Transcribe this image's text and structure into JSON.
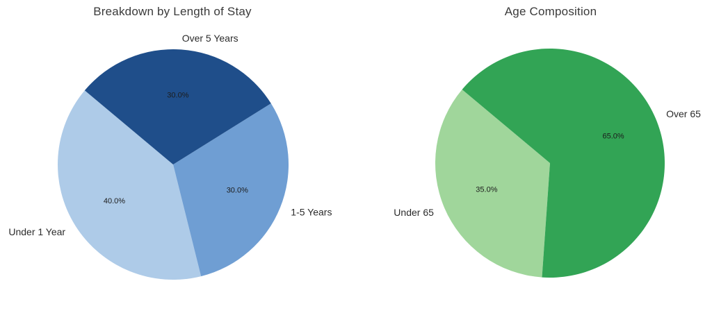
{
  "page": {
    "background": "#ffffff"
  },
  "chart_data": [
    {
      "type": "pie",
      "title": "Breakdown by Length of Stay",
      "categories": [
        "Under 1 Year",
        "1-5 Years",
        "Over 5 Years"
      ],
      "values": [
        40.0,
        30.0,
        30.0
      ],
      "percent_labels": [
        "40.0%",
        "30.0%",
        "30.0%"
      ],
      "colors": [
        "#aecbe8",
        "#6f9ed3",
        "#1f4e8a"
      ],
      "start_angle_deg": 140,
      "direction": "counterclockwise",
      "label_distance": 1.1,
      "percent_distance": 0.6,
      "legend_position": "none",
      "grid": false
    },
    {
      "type": "pie",
      "title": "Age Composition",
      "categories": [
        "Under 65",
        "Over 65"
      ],
      "values": [
        35.0,
        65.0
      ],
      "percent_labels": [
        "35.0%",
        "65.0%"
      ],
      "colors": [
        "#a0d69b",
        "#32a455"
      ],
      "start_angle_deg": 140,
      "direction": "counterclockwise",
      "label_distance": 1.1,
      "percent_distance": 0.6,
      "legend_position": "none",
      "grid": false
    }
  ]
}
